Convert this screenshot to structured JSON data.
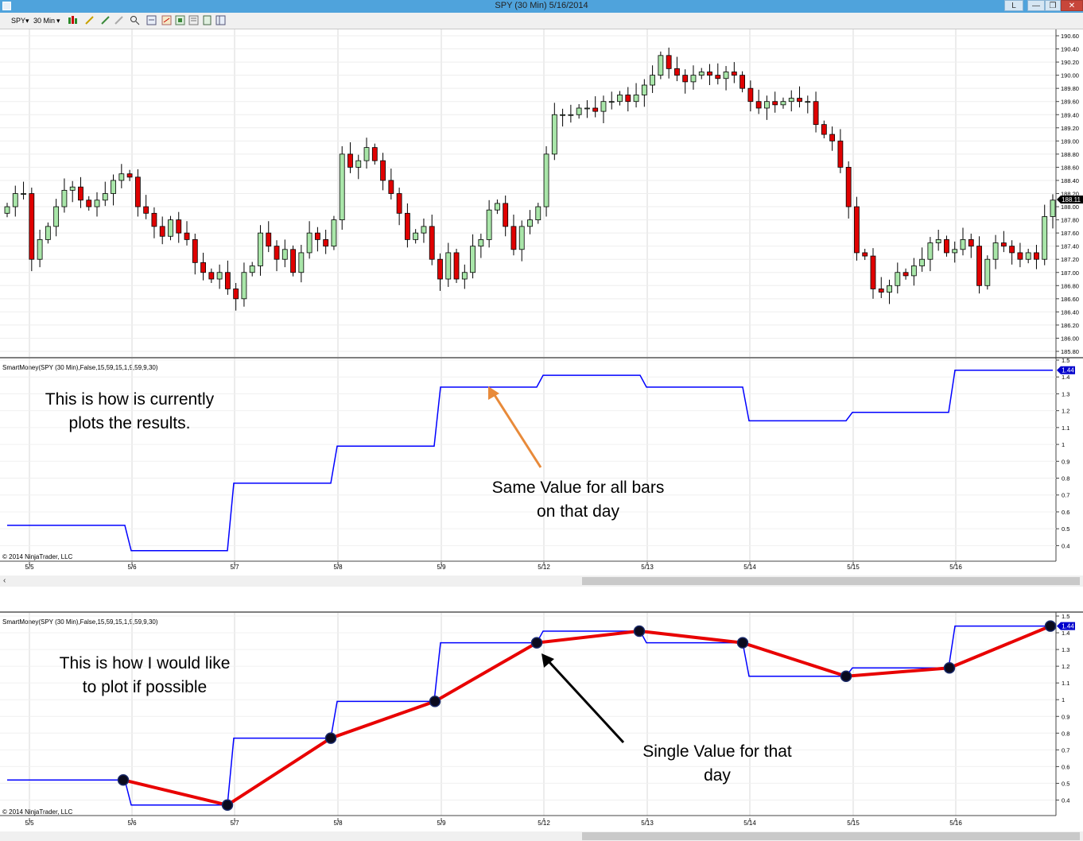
{
  "window": {
    "title": "SPY (30 Min)  5/16/2014",
    "buttons": [
      "L",
      "—",
      "❐",
      "✕"
    ]
  },
  "toolbar": {
    "instrument": "SPY",
    "interval": "30 Min"
  },
  "colors": {
    "up_candle": "#a9e6a9",
    "down_candle": "#e00000",
    "indicator_line": "#0000ff",
    "daily_line": "#e80000",
    "annotation_arrow_orange": "#e88a3a",
    "price_marker": "#000000",
    "value_marker": "#0000cc"
  },
  "price_chart": {
    "price_labels": [
      "190.60",
      "190.40",
      "190.20",
      "190.00",
      "189.80",
      "189.60",
      "189.40",
      "189.20",
      "189.00",
      "188.80",
      "188.60",
      "188.40",
      "188.20",
      "188.00",
      "187.80",
      "187.60",
      "187.40",
      "187.20",
      "187.00",
      "186.80",
      "186.60",
      "186.40",
      "186.20",
      "186.00",
      "185.80"
    ],
    "last_price": "188.11",
    "price_min": 185.8,
    "price_max": 190.6
  },
  "dates": [
    "5/5",
    "5/6",
    "5/7",
    "5/8",
    "5/9",
    "5/12",
    "5/13",
    "5/14",
    "5/15",
    "5/16"
  ],
  "panel1": {
    "indicator_label": "SmartMoney(SPY (30 Min),False,15,59,15,1,9,59,9,30)",
    "copyright": "© 2014 NinjaTrader, LLC",
    "annotation_text_1": "This is how is currently",
    "annotation_text_2": "plots the results.",
    "annotation2_line1": "Same Value for all bars",
    "annotation2_line2": "on that day",
    "y_labels": [
      "1.5",
      "1.4",
      "1.3",
      "1.2",
      "1.1",
      "1",
      "0.9",
      "0.8",
      "0.7",
      "0.6",
      "0.5",
      "0.4"
    ],
    "value_marker": "1.44"
  },
  "panel2": {
    "indicator_label": "SmartMoney(SPY (30 Min),False,15,59,15,1,9,59,9,30)",
    "copyright": "© 2014 NinjaTrader, LLC",
    "annotation_text_1": "This is how I would like",
    "annotation_text_2": "to plot if possible",
    "annotation2_line1": "Single Value for that",
    "annotation2_line2": "day",
    "y_labels": [
      "1.5",
      "1.4",
      "1.3",
      "1.2",
      "1.1",
      "1",
      "0.9",
      "0.8",
      "0.7",
      "0.6",
      "0.5",
      "0.4"
    ],
    "value_marker": "1.44"
  },
  "chart_data": {
    "type": "line",
    "title": "SPY (30 Min)  5/16/2014",
    "xlabel": "",
    "ylabel": "",
    "x": [
      "5/5",
      "5/6",
      "5/7",
      "5/8",
      "5/9",
      "5/12",
      "5/13",
      "5/14",
      "5/15",
      "5/16"
    ],
    "series": [
      {
        "name": "SmartMoney(SPY (30 Min),False,15,59,15,1,9,59,9,30)",
        "values": [
          0.52,
          0.37,
          0.77,
          0.99,
          1.34,
          1.41,
          1.34,
          1.14,
          1.19,
          1.44
        ]
      }
    ],
    "ylim": [
      0.35,
      1.5
    ],
    "price_ylim": [
      185.8,
      190.6
    ]
  }
}
